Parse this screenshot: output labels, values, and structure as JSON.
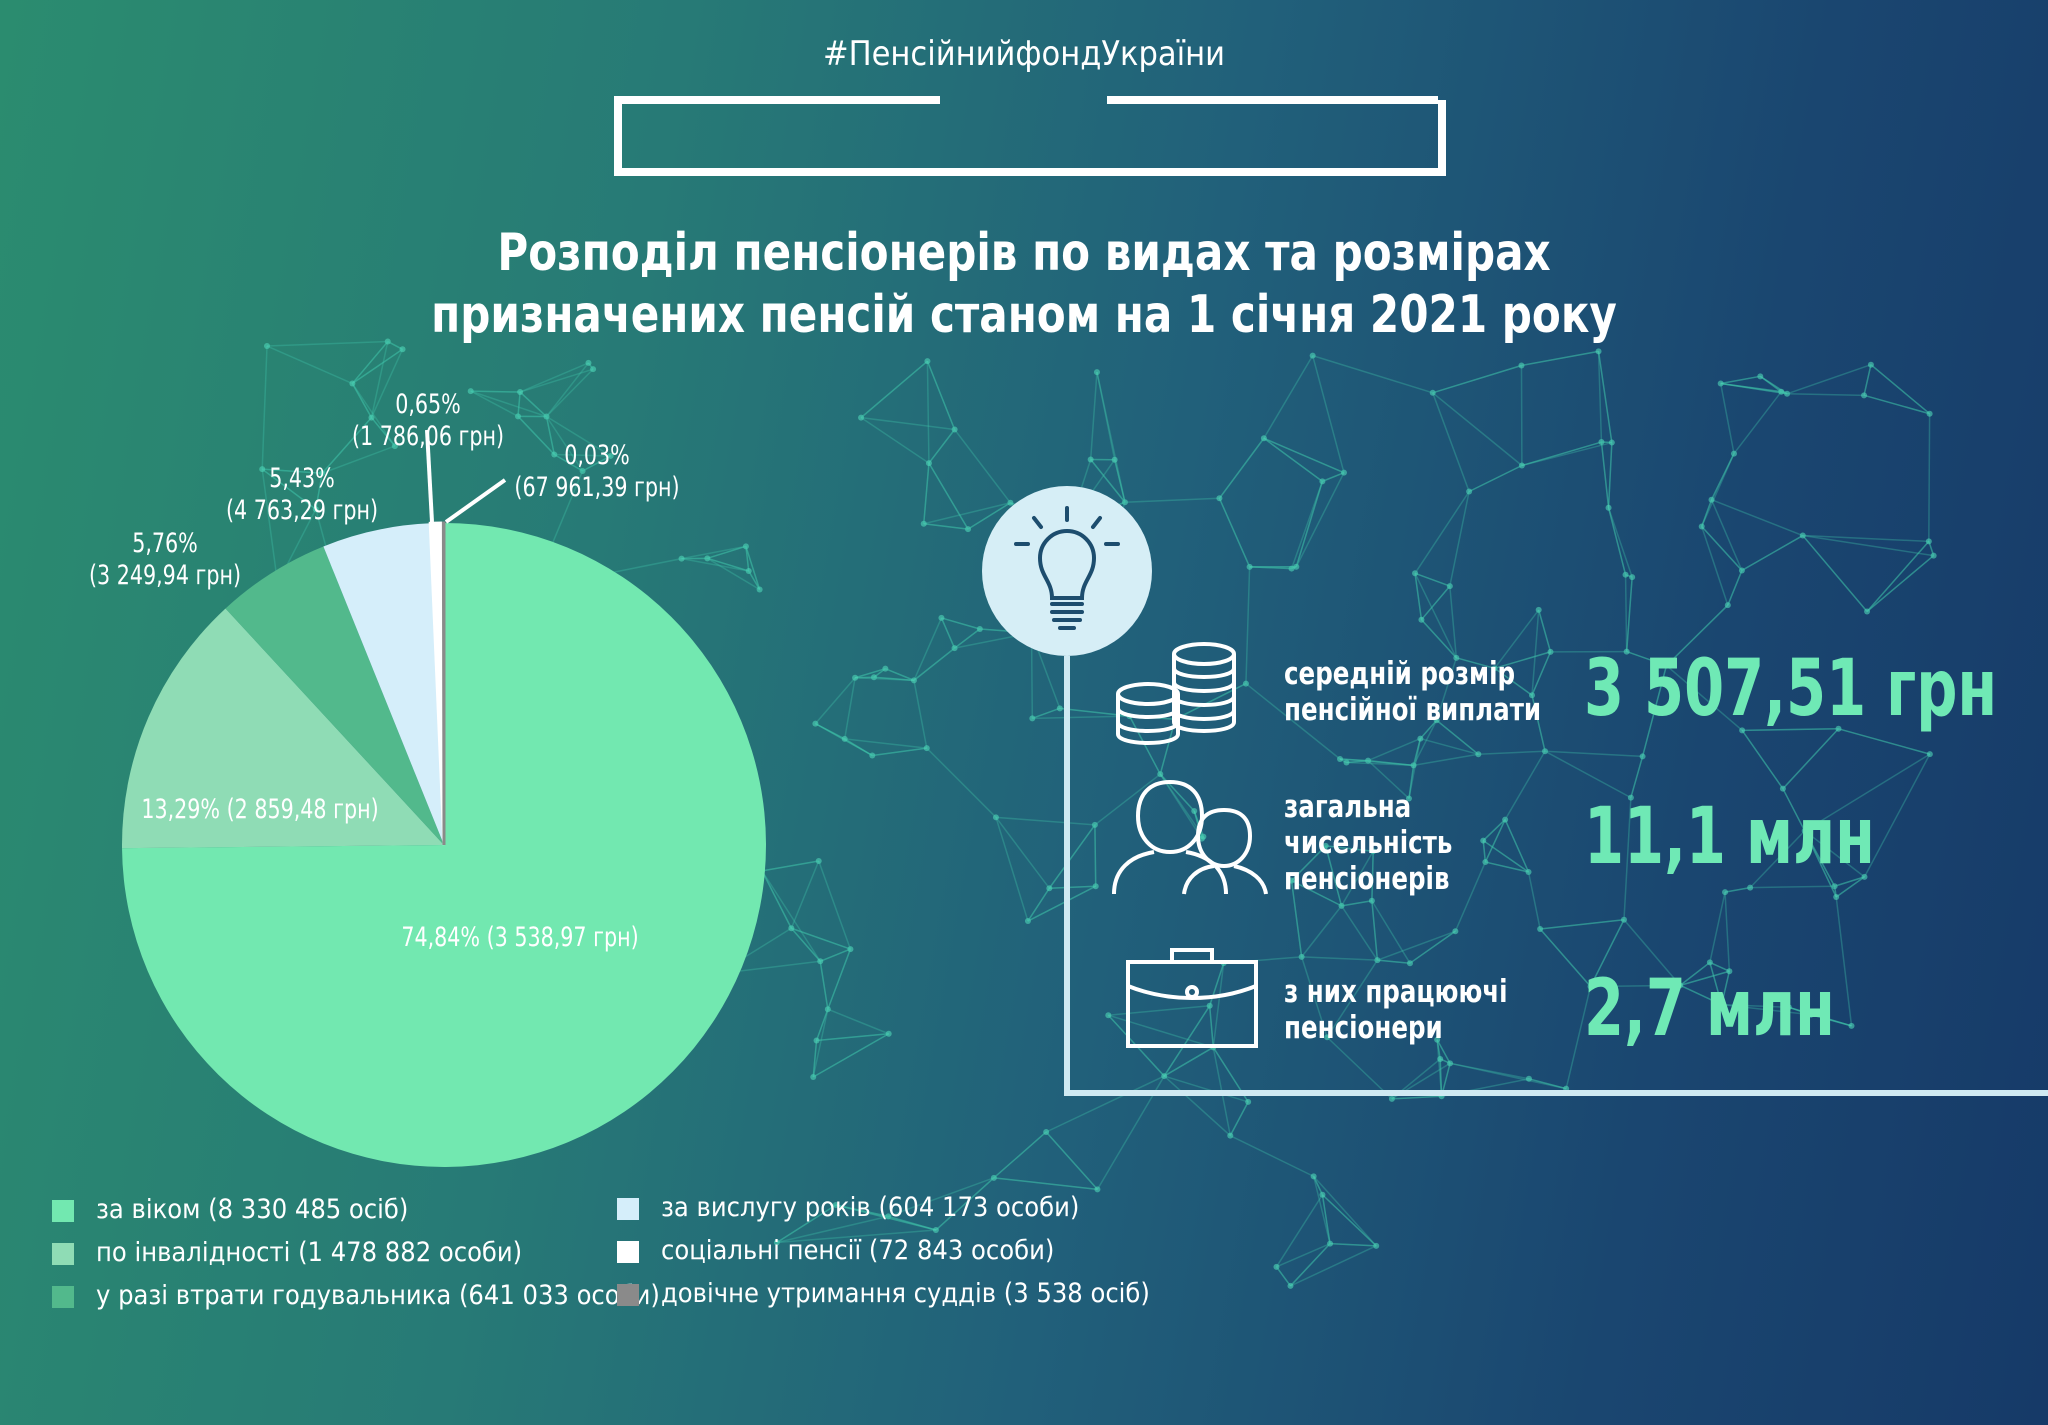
{
  "hashtag": "#ПенсійнийфондУкраїни",
  "title": [
    "Розподіл пенсіонерів по видах та розмірах",
    "призначених пенсій станом на 1 січня 2021 року"
  ],
  "chart_data": {
    "type": "pie",
    "title": "Розподіл пенсіонерів по видах та розмірах призначених пенсій станом на 1 січня 2021 року",
    "legend_position": "bottom",
    "slices": [
      {
        "name": "за віком (8 330 485 осіб)",
        "percent": 74.84,
        "label": "74,84% (3 538,97 грн)",
        "color": "#72e8b0"
      },
      {
        "name": "по інвалідності (1 478 882 особи)",
        "percent": 13.29,
        "label": "13,29% (2 859,48 грн)",
        "color": "#8fdcb5"
      },
      {
        "name": "у разі втрати годувальника (641 033 особи)",
        "percent": 5.76,
        "label_pct": "5,76%",
        "label_amt": "(3 249,94 грн)",
        "color": "#52b98c"
      },
      {
        "name": "за вислугу років (604 173 особи)",
        "percent": 5.43,
        "label_pct": "5,43%",
        "label_amt": "(4 763,29 грн)",
        "color": "#d5eefa"
      },
      {
        "name": "соціальні пенсії (72 843 особи)",
        "percent": 0.65,
        "label_pct": "0,65%",
        "label_amt": "(1 786,06 грн)",
        "color": "#ffffff"
      },
      {
        "name": "довічне утримання суддів (3 538 осіб)",
        "percent": 0.03,
        "label_pct": "0,03%",
        "label_amt": "(67 961,39 грн)",
        "color": "#8a8a8a"
      }
    ]
  },
  "stats": [
    {
      "icon": "coins-icon",
      "label": [
        "середній розмір",
        "пенсійної виплати"
      ],
      "value": "3 507,51 грн"
    },
    {
      "icon": "people-icon",
      "label": [
        "загальна",
        "чисельність",
        "пенсіонерів"
      ],
      "value": "11,1 млн"
    },
    {
      "icon": "briefcase-icon",
      "label": [
        "з них працюючі",
        "пенсіонери"
      ],
      "value": "2,7 млн"
    }
  ],
  "bulb_icon": "lightbulb-icon"
}
